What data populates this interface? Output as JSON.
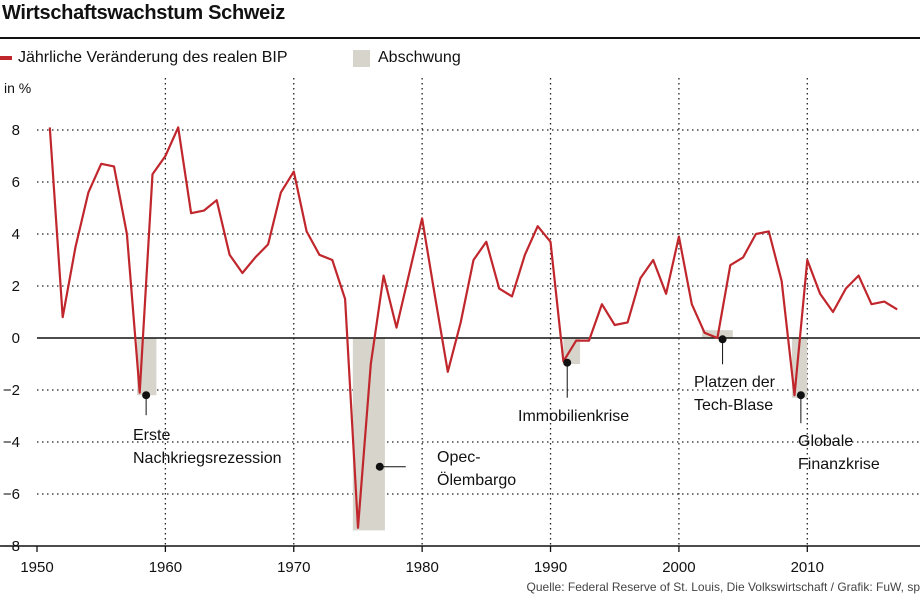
{
  "title": "Wirtschaftswachstum Schweiz",
  "legend": {
    "line_label": "Jährliche Veränderung des realen BIP",
    "box_label": "Abschwung",
    "line_color": "#c0272d",
    "box_color": "#d7d4cb"
  },
  "unit": "in %",
  "source": "Quelle: Federal Reserve of St. Louis, Die Volkswirtschaft / Grafik: FuW, sp",
  "annotations": {
    "erste_1": "Erste",
    "erste_2": "Nachkriegsrezession",
    "opec_1": "Opec-",
    "opec_2": "Ölembargo",
    "immo": "Immobilienkrise",
    "tech_1": "Platzen der",
    "tech_2": "Tech-Blase",
    "global_1": "Globale",
    "global_2": "Finanzkrise"
  },
  "chart_data": {
    "type": "line",
    "title": "Wirtschaftswachstum Schweiz",
    "ylabel": "in %",
    "xlabel": "",
    "xlim": [
      1950,
      2018
    ],
    "ylim": [
      -8,
      9
    ],
    "x_ticks": [
      1950,
      1960,
      1970,
      1980,
      1990,
      2000,
      2010
    ],
    "y_ticks": [
      8,
      6,
      4,
      2,
      0,
      -2,
      -4,
      -6,
      -8
    ],
    "y_tick_labels": [
      "8",
      "6",
      "4",
      "2",
      "0",
      "−2",
      "−4",
      "−6",
      "−8"
    ],
    "series": [
      {
        "name": "Jährliche Veränderung des realen BIP",
        "x": [
          1951,
          1952,
          1953,
          1954,
          1955,
          1956,
          1957,
          1958,
          1959,
          1960,
          1961,
          1962,
          1963,
          1964,
          1965,
          1966,
          1967,
          1968,
          1969,
          1970,
          1971,
          1972,
          1973,
          1974,
          1975,
          1976,
          1977,
          1978,
          1979,
          1980,
          1981,
          1982,
          1983,
          1984,
          1985,
          1986,
          1987,
          1988,
          1989,
          1990,
          1991,
          1992,
          1993,
          1994,
          1995,
          1996,
          1997,
          1998,
          1999,
          2000,
          2001,
          2002,
          2003,
          2004,
          2005,
          2006,
          2007,
          2008,
          2009,
          2010,
          2011,
          2012,
          2013,
          2014,
          2015,
          2016,
          2017
        ],
        "values": [
          8.1,
          0.8,
          3.5,
          5.6,
          6.7,
          6.6,
          4.0,
          -2.1,
          6.3,
          7.0,
          8.1,
          4.8,
          4.9,
          5.3,
          3.2,
          2.5,
          3.1,
          3.6,
          5.6,
          6.4,
          4.1,
          3.2,
          3.0,
          1.5,
          -7.3,
          -1.0,
          2.4,
          0.4,
          2.5,
          4.6,
          1.6,
          -1.3,
          0.6,
          3.0,
          3.7,
          1.9,
          1.6,
          3.2,
          4.3,
          3.7,
          -0.9,
          -0.1,
          -0.1,
          1.3,
          0.5,
          0.6,
          2.3,
          3.0,
          1.7,
          3.9,
          1.3,
          0.2,
          0.0,
          2.8,
          3.1,
          4.0,
          4.1,
          2.2,
          -2.2,
          3.0,
          1.7,
          1.0,
          1.9,
          2.4,
          1.3,
          1.4,
          1.1
        ]
      }
    ],
    "recessions": [
      {
        "start": 1957.8,
        "end": 1959.3,
        "min": -2.2,
        "max": 0
      },
      {
        "start": 1974.6,
        "end": 1977.1,
        "min": -7.4,
        "max": 0
      },
      {
        "start": 1991.0,
        "end": 1992.3,
        "min": -1.0,
        "max": 0
      },
      {
        "start": 2001.8,
        "end": 2004.2,
        "min": 0,
        "max": 0.3
      },
      {
        "start": 2008.8,
        "end": 2010.0,
        "min": -2.3,
        "max": 0
      }
    ],
    "markers": [
      {
        "name": "erste",
        "x": 1958.5,
        "y": -2.2
      },
      {
        "name": "opec",
        "x": 1976.7,
        "y": -4.95
      },
      {
        "name": "immo",
        "x": 1991.3,
        "y": -0.95
      },
      {
        "name": "tech",
        "x": 2003.4,
        "y": -0.05
      },
      {
        "name": "global",
        "x": 2009.5,
        "y": -2.2
      }
    ]
  }
}
